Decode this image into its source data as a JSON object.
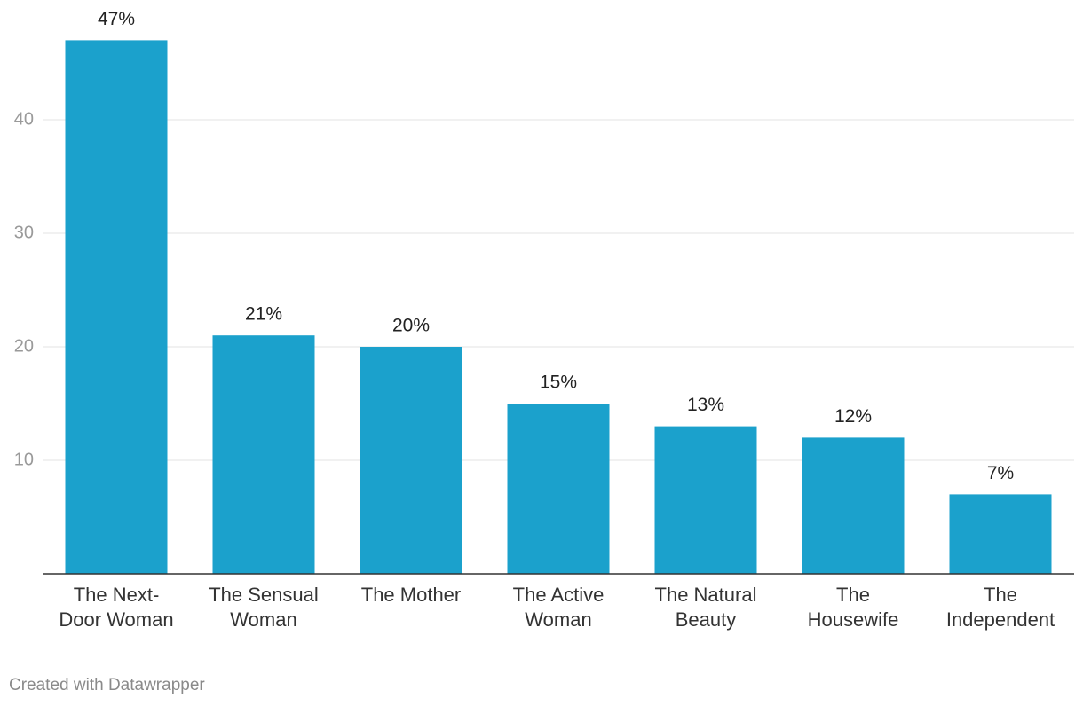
{
  "chart_data": {
    "type": "bar",
    "categories": [
      [
        "The Next-",
        "Door Woman"
      ],
      [
        "The Sensual",
        "Woman"
      ],
      [
        "The Mother"
      ],
      [
        "The Active",
        "Woman"
      ],
      [
        "The Natural",
        "Beauty"
      ],
      [
        "The",
        "Housewife"
      ],
      [
        "The",
        "Independent"
      ]
    ],
    "values": [
      47,
      21,
      20,
      15,
      13,
      12,
      7
    ],
    "value_labels": [
      "47%",
      "21%",
      "20%",
      "15%",
      "13%",
      "12%",
      "7%"
    ],
    "color": "#1ba1cc",
    "ylim": [
      0,
      50
    ],
    "yticks": [
      10,
      20,
      30,
      40
    ],
    "grid": true,
    "credit": "Created with Datawrapper"
  }
}
